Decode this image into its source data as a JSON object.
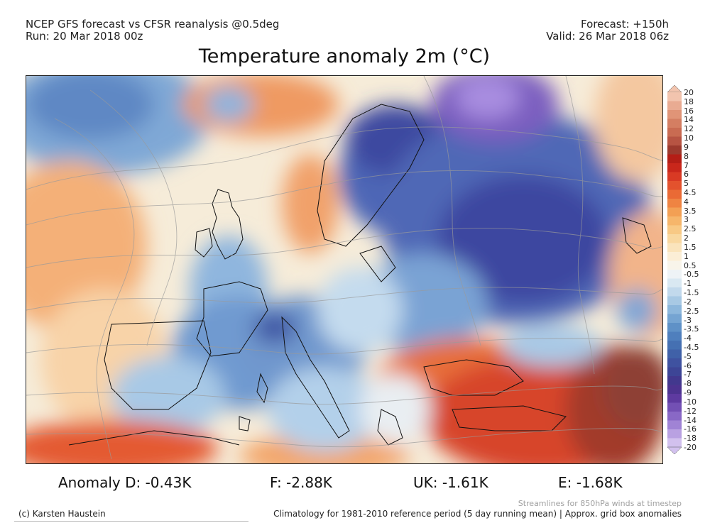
{
  "header": {
    "left_line1": "NCEP GFS forecast vs CFSR reanalysis @0.5deg",
    "left_line2": "Run: 20 Mar 2018 00z",
    "right_line1": "Forecast: +150h",
    "right_line2": "Valid: 26 Mar 2018 06z"
  },
  "title": "Temperature anomaly 2m (°C)",
  "colorbar": {
    "labels": [
      "20",
      "18",
      "16",
      "14",
      "12",
      "10",
      "9",
      "8",
      "7",
      "6",
      "5",
      "4.5",
      "4",
      "3.5",
      "3",
      "2.5",
      "2",
      "1.5",
      "1",
      "0.5",
      "-0.5",
      "-1",
      "-1.5",
      "-2",
      "-2.5",
      "-3",
      "-3.5",
      "-4",
      "-4.5",
      "-5",
      "-6",
      "-7",
      "-8",
      "-9",
      "-10",
      "-12",
      "-14",
      "-16",
      "-18",
      "-20"
    ],
    "colors": [
      "#f2c4ae",
      "#e9ab92",
      "#e09477",
      "#d47e62",
      "#c96b52",
      "#b75443",
      "#9c3a2e",
      "#b41e16",
      "#c9271b",
      "#d93a24",
      "#e3522d",
      "#ea6a35",
      "#ef8442",
      "#f3a054",
      "#f6b66b",
      "#f8c985",
      "#f9d8a0",
      "#fae4bc",
      "#fbeed6",
      "#f8f4ea",
      "#eef3f6",
      "#d9e8f2",
      "#c2d9ec",
      "#a8c9e4",
      "#8db7dc",
      "#75a4d2",
      "#5f91c7",
      "#4f7fbd",
      "#4570b2",
      "#4061a8",
      "#3f52a0",
      "#3d4596",
      "#42388e",
      "#4d3390",
      "#5e3aa0",
      "#7350b4",
      "#8968c6",
      "#a083d5",
      "#b9a1e2",
      "#d2c1ee"
    ]
  },
  "map": {
    "region": "Europe",
    "overlay": "Streamlines for 850hPa winds at timestep"
  },
  "anomalies": {
    "d": "Anomaly D: -0.43K",
    "f": "F: -2.88K",
    "uk": "UK: -1.61K",
    "e": "E: -1.68K"
  },
  "footer": {
    "streamlines_note": "Streamlines for 850hPa winds at timestep",
    "copyright": "(c) Karsten Haustein",
    "climatology": "Climatology for 1981-2010 reference period (5 day running mean) | Approx. grid box anomalies"
  }
}
